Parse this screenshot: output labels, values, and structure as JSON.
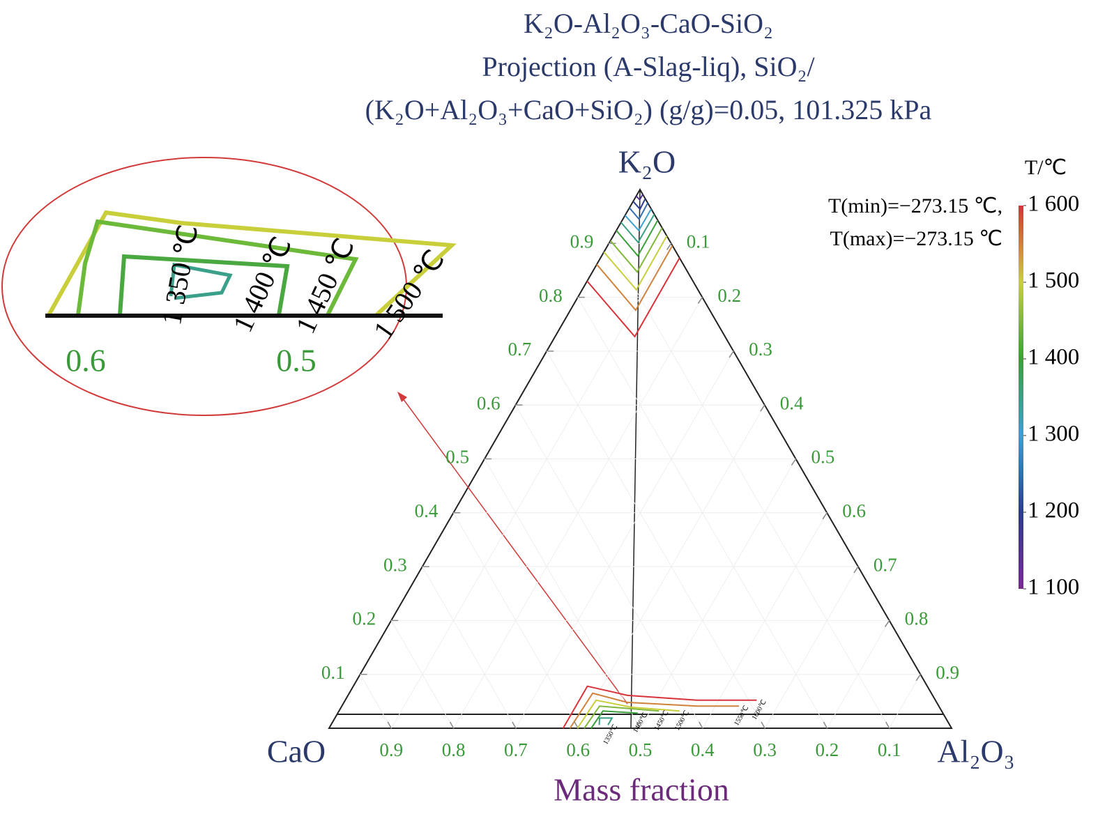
{
  "chart_data": {
    "type": "ternary",
    "title": [
      "K₂O-Al₂O₃-CaO-SiO₂",
      "Projection (A-Slag-liq), SiO₂/",
      "(K₂O+Al₂O₃+CaO+SiO₂) (g/g)=0.05, 101.325 kPa"
    ],
    "corners": {
      "top": "K₂O",
      "left": "CaO",
      "right": "Al₂O₃"
    },
    "axis_label": "Mass fraction",
    "left_ticks": [
      0.1,
      0.2,
      0.3,
      0.4,
      0.5,
      0.6,
      0.7,
      0.8,
      0.9
    ],
    "right_ticks": [
      0.1,
      0.2,
      0.3,
      0.4,
      0.5,
      0.6,
      0.7,
      0.8,
      0.9
    ],
    "bottom_ticks": [
      0.9,
      0.8,
      0.7,
      0.6,
      0.5,
      0.4,
      0.3,
      0.2,
      0.1
    ],
    "note": [
      "T(min)=−273.15 ℃,",
      "T(max)=−273.15 ℃"
    ],
    "colorbar": {
      "title": "T/℃",
      "clim": [
        1100,
        1600
      ],
      "ticks": [
        {
          "value": 1100,
          "label": "1 100"
        },
        {
          "value": 1200,
          "label": "1 200"
        },
        {
          "value": 1300,
          "label": "1 300"
        },
        {
          "value": 1400,
          "label": "1 400"
        },
        {
          "value": 1500,
          "label": "1 500"
        },
        {
          "value": 1600,
          "label": "1 600"
        }
      ],
      "colors": [
        "#7b2a8f",
        "#2a3d8f",
        "#3aa0d0",
        "#3aa03a",
        "#c8cf3a",
        "#d8323a"
      ]
    },
    "isotherms": [
      {
        "T": 1600,
        "points": [
          [
            0.83,
            0,
            0.17
          ],
          [
            0.727,
            0.128,
            0.145
          ],
          [
            0.873,
            0.127,
            0
          ]
        ]
      },
      {
        "T": 1550,
        "points": [
          [
            0.861,
            0,
            0.139
          ],
          [
            0.776,
            0.105,
            0.119
          ],
          [
            0.896,
            0.104,
            0
          ]
        ]
      },
      {
        "T": 1500,
        "points": [
          [
            0.884,
            0,
            0.116
          ],
          [
            0.814,
            0.087,
            0.099
          ],
          [
            0.914,
            0.086,
            0
          ]
        ]
      },
      {
        "T": 1450,
        "points": [
          [
            0.905,
            0,
            0.095
          ],
          [
            0.847,
            0.072,
            0.081
          ],
          [
            0.929,
            0.071,
            0
          ]
        ]
      },
      {
        "T": 1400,
        "points": [
          [
            0.924,
            0,
            0.076
          ],
          [
            0.877,
            0.058,
            0.065
          ],
          [
            0.943,
            0.057,
            0
          ]
        ]
      },
      {
        "T": 1350,
        "points": [
          [
            0.939,
            0,
            0.061
          ],
          [
            0.902,
            0.046,
            0.052
          ],
          [
            0.954,
            0.046,
            0
          ]
        ]
      },
      {
        "T": 1300,
        "points": [
          [
            0.952,
            0,
            0.048
          ],
          [
            0.924,
            0.036,
            0.04
          ],
          [
            0.964,
            0.036,
            0
          ]
        ]
      },
      {
        "T": 1250,
        "points": [
          [
            0.966,
            0,
            0.034
          ],
          [
            0.945,
            0.026,
            0.029
          ],
          [
            0.975,
            0.025,
            0
          ]
        ]
      },
      {
        "T": 1200,
        "points": [
          [
            0.978,
            0,
            0.022
          ],
          [
            0.965,
            0.017,
            0.019
          ],
          [
            0.983,
            0.017,
            0
          ]
        ]
      },
      {
        "T": 1150,
        "points": [
          [
            0.988,
            0,
            0.012
          ],
          [
            0.981,
            0.009,
            0.01
          ],
          [
            0.991,
            0.009,
            0
          ]
        ]
      },
      {
        "T": 1600,
        "label": "1600℃",
        "points": [
          [
            0,
            0.376,
            0.624
          ],
          [
            0.078,
            0.376,
            0.546
          ],
          [
            0.061,
            0.449,
            0.49
          ],
          [
            0.052,
            0.565,
            0.383
          ],
          [
            0.052,
            0.661,
            0.287
          ]
        ]
      },
      {
        "T": 1550,
        "label": "1550℃",
        "points": [
          [
            0,
            0.387,
            0.613
          ],
          [
            0.065,
            0.391,
            0.544
          ],
          [
            0.048,
            0.455,
            0.497
          ],
          [
            0.041,
            0.571,
            0.388
          ],
          [
            0.041,
            0.638,
            0.321
          ]
        ]
      },
      {
        "T": 1500,
        "label": "1500℃",
        "points": [
          [
            0,
            0.399,
            0.601
          ],
          [
            0.052,
            0.403,
            0.545
          ],
          [
            0.039,
            0.466,
            0.495
          ],
          [
            0.032,
            0.547,
            0.421
          ]
        ]
      },
      {
        "T": 1450,
        "label": "1450℃",
        "points": [
          [
            0,
            0.41,
            0.59
          ],
          [
            0.041,
            0.414,
            0.545
          ],
          [
            0.032,
            0.514,
            0.454
          ]
        ]
      },
      {
        "T": 1400,
        "label": "1400℃",
        "points": [
          [
            0,
            0.421,
            0.579
          ],
          [
            0.032,
            0.424,
            0.544
          ],
          [
            0.028,
            0.482,
            0.49
          ]
        ]
      },
      {
        "T": 1350,
        "label": "1350℃",
        "points": [
          [
            0.006,
            0.431,
            0.563
          ],
          [
            0.019,
            0.425,
            0.556
          ],
          [
            0.019,
            0.445,
            0.536
          ],
          [
            0.006,
            0.445,
            0.549
          ]
        ]
      }
    ]
  },
  "inset": {
    "labels": [
      "1 350 ℃",
      "1 400 ℃",
      "1 450 ℃",
      "1 500 ℃"
    ],
    "ticks": [
      "0.6",
      "0.5"
    ]
  }
}
